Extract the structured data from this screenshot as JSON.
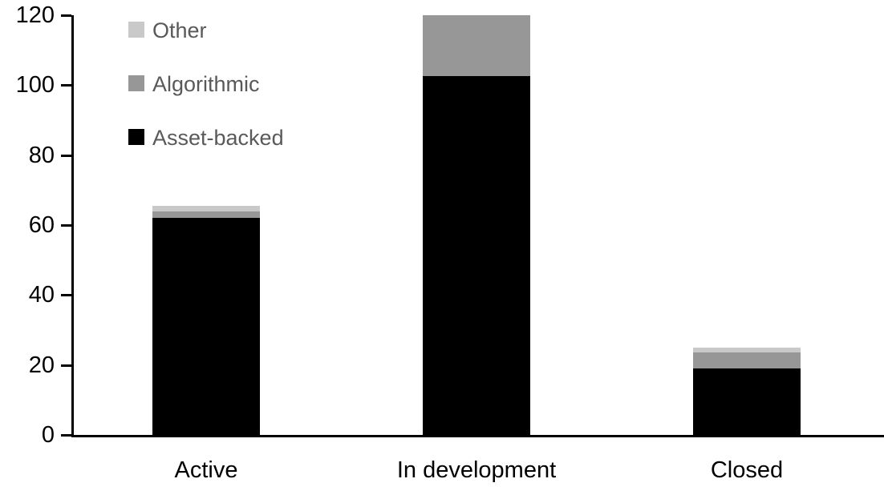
{
  "chart": {
    "background_color": "#ffffff",
    "axis_color": "#000000",
    "tick_label_color": "#000000",
    "category_label_color": "#000000",
    "legend_text_color": "#595959"
  },
  "chart_data": {
    "type": "bar",
    "stacked": true,
    "title": "",
    "xlabel": "",
    "ylabel": "",
    "categories": [
      "Active",
      "In development",
      "Closed"
    ],
    "series": [
      {
        "name": "Asset-backed",
        "color": "#000000",
        "values": [
          62,
          102.5,
          19
        ]
      },
      {
        "name": "Algorithmic",
        "color": "#979797",
        "values": [
          2,
          17.5,
          4.5
        ]
      },
      {
        "name": "Other",
        "color": "#c9c9c9",
        "values": [
          1.5,
          0,
          1.5
        ]
      }
    ],
    "ylim": [
      0,
      120
    ],
    "yticks": [
      0,
      20,
      40,
      60,
      80,
      100,
      120
    ],
    "grid": false,
    "legend": {
      "entries": [
        "Other",
        "Algorithmic",
        "Asset-backed"
      ],
      "position": "inside-top-left"
    }
  }
}
